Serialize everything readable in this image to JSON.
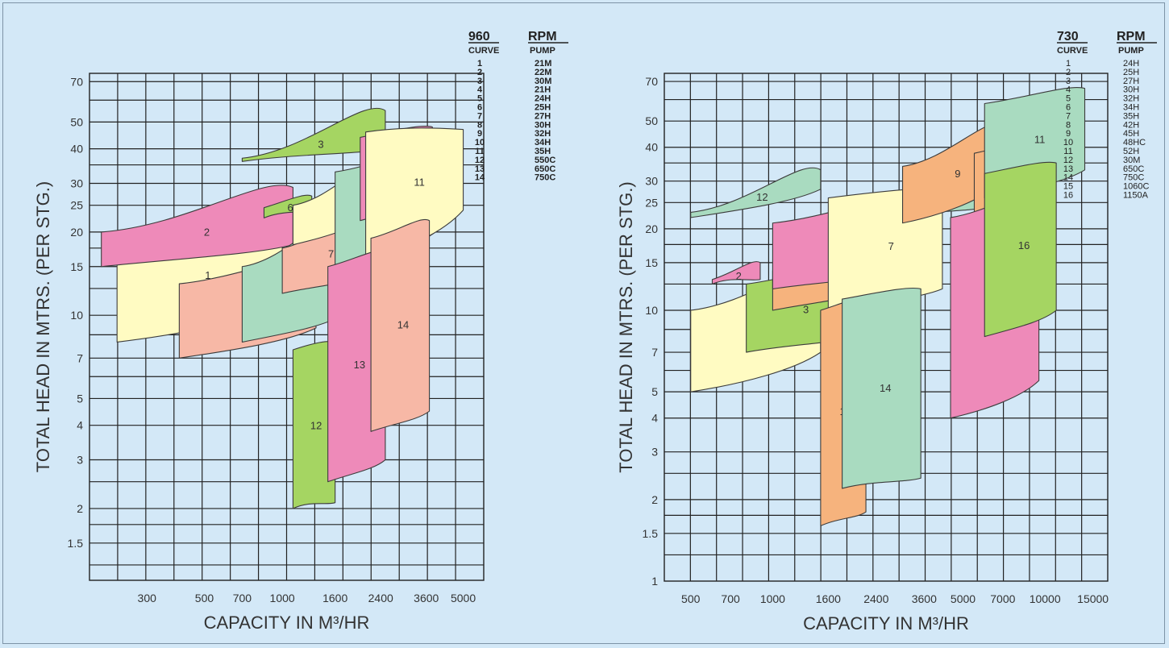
{
  "colors": {
    "background": "#d3e8f7",
    "grid": "#222222",
    "yellow": "#fffbc2",
    "pink": "#ee8ab9",
    "green": "#a5d562",
    "salmon": "#f7b8a6",
    "teal": "#a9dbc0",
    "orange": "#f6b37d"
  },
  "chart_data": [
    {
      "type": "area",
      "ylabel": "TOTAL HEAD IN MTRS. (PER STG.)",
      "xlabel": "CAPACITY IN M³/HR",
      "x_scale": "log",
      "y_scale": "log",
      "x_ticks": [
        "300",
        "500",
        "700",
        "1000",
        "1600",
        "2400",
        "3600",
        "5000"
      ],
      "y_ticks": [
        "70",
        "50",
        "40",
        "30",
        "25",
        "20",
        "15",
        "10",
        "7",
        "5",
        "4",
        "3",
        "2",
        "1.5"
      ],
      "legend": {
        "speed": "960",
        "speed_unit": "RPM",
        "col_curve": "CURVE",
        "col_pump": "PUMP",
        "rows": [
          [
            "1",
            "21M"
          ],
          [
            "2",
            "22M"
          ],
          [
            "3",
            "30M"
          ],
          [
            "4",
            "21H"
          ],
          [
            "5",
            "24H"
          ],
          [
            "6",
            "25H"
          ],
          [
            "7",
            "27H"
          ],
          [
            "8",
            "30H"
          ],
          [
            "9",
            "32H"
          ],
          [
            "10",
            "34H"
          ],
          [
            "11",
            "35H"
          ],
          [
            "12",
            "550C"
          ],
          [
            "13",
            "650C"
          ],
          [
            "14",
            "750C"
          ]
        ]
      },
      "curves": [
        {
          "curve": "1",
          "color": "yellow",
          "q": [
            230,
            1000
          ],
          "h": [
            17,
            25,
            11,
            8
          ]
        },
        {
          "curve": "2",
          "color": "pink",
          "q": [
            200,
            1100
          ],
          "h": [
            20,
            29,
            18,
            15
          ]
        },
        {
          "curve": "3",
          "color": "green",
          "q": [
            700,
            2500
          ],
          "h": [
            37,
            55,
            40,
            36
          ]
        },
        {
          "curve": "4",
          "color": "salmon",
          "q": [
            400,
            1350
          ],
          "h": [
            13,
            16,
            9,
            7
          ]
        },
        {
          "curve": "5",
          "color": "teal",
          "q": [
            700,
            1700
          ],
          "h": [
            15,
            22,
            10,
            8
          ]
        },
        {
          "curve": "6",
          "color": "green",
          "q": [
            850,
            1300
          ],
          "h": [
            24.5,
            27,
            24,
            22.5
          ]
        },
        {
          "curve": "7",
          "color": "salmon",
          "q": [
            1000,
            2200
          ],
          "h": [
            17.5,
            26,
            14,
            12
          ]
        },
        {
          "curve": "8",
          "color": "yellow",
          "q": [
            1100,
            2400
          ],
          "h": [
            25,
            35,
            24,
            18
          ]
        },
        {
          "curve": "9",
          "color": "teal",
          "q": [
            1600,
            3900
          ],
          "h": [
            33,
            40,
            20,
            15
          ]
        },
        {
          "curve": "10",
          "color": "pink",
          "q": [
            2000,
            3800
          ],
          "h": [
            44,
            48,
            26,
            22
          ]
        },
        {
          "curve": "11",
          "color": "yellow",
          "q": [
            2100,
            5000
          ],
          "h": [
            46,
            47,
            24,
            16
          ]
        },
        {
          "curve": "12",
          "color": "green",
          "q": [
            1100,
            1600
          ],
          "h": [
            7.5,
            8,
            2.1,
            2
          ]
        },
        {
          "curve": "13",
          "color": "pink",
          "q": [
            1500,
            2500
          ],
          "h": [
            15,
            17,
            3,
            2.5
          ]
        },
        {
          "curve": "14",
          "color": "salmon",
          "q": [
            2200,
            3700
          ],
          "h": [
            19,
            22,
            4.5,
            3.8
          ]
        }
      ]
    },
    {
      "type": "area",
      "ylabel": "TOTAL HEAD IN MTRS. (PER STG.)",
      "xlabel": "CAPACITY IN M³/HR",
      "x_scale": "log",
      "y_scale": "log",
      "x_ticks": [
        "500",
        "700",
        "1000",
        "1600",
        "2400",
        "3600",
        "5000",
        "7000",
        "10000",
        "15000"
      ],
      "y_ticks": [
        "70",
        "50",
        "40",
        "30",
        "25",
        "20",
        "15",
        "10",
        "7",
        "5",
        "4",
        "3",
        "2",
        "1.5",
        "1"
      ],
      "legend": {
        "speed": "730",
        "speed_unit": "RPM",
        "col_curve": "CURVE",
        "col_pump": "PUMP",
        "rows": [
          [
            "1",
            "24H"
          ],
          [
            "2",
            "25H"
          ],
          [
            "3",
            "27H"
          ],
          [
            "4",
            "30H"
          ],
          [
            "5",
            "32H"
          ],
          [
            "6",
            "34H"
          ],
          [
            "7",
            "35H"
          ],
          [
            "8",
            "42H"
          ],
          [
            "9",
            "45H"
          ],
          [
            "10",
            "48HC"
          ],
          [
            "11",
            "52H"
          ],
          [
            "12",
            "30M"
          ],
          [
            "13",
            "650C"
          ],
          [
            "14",
            "750C"
          ],
          [
            "15",
            "1060C"
          ],
          [
            "16",
            "1150A"
          ]
        ]
      },
      "curves": [
        {
          "curve": "1",
          "color": "yellow",
          "q": [
            500,
            1500
          ],
          "h": [
            10,
            14,
            7,
            5
          ]
        },
        {
          "curve": "2",
          "color": "pink",
          "q": [
            600,
            900
          ],
          "h": [
            13,
            15,
            13,
            12.5
          ]
        },
        {
          "curve": "3",
          "color": "green",
          "q": [
            800,
            2000
          ],
          "h": [
            12.5,
            14.5,
            8,
            7
          ]
        },
        {
          "curve": "4",
          "color": "orange",
          "q": [
            1000,
            2400
          ],
          "h": [
            14,
            19,
            12,
            10
          ]
        },
        {
          "curve": "5",
          "color": "green",
          "q": [
            2000,
            3200
          ],
          "h": [
            13,
            15,
            10,
            8
          ]
        },
        {
          "curve": "6",
          "color": "pink",
          "q": [
            1000,
            3200
          ],
          "h": [
            21,
            26,
            14,
            12
          ]
        },
        {
          "curve": "7",
          "color": "yellow",
          "q": [
            1600,
            4200
          ],
          "h": [
            26,
            28,
            12,
            10
          ]
        },
        {
          "curve": "8",
          "color": "teal",
          "q": [
            3000,
            6000
          ],
          "h": [
            33,
            37,
            24,
            22
          ]
        },
        {
          "curve": "9",
          "color": "orange",
          "q": [
            3000,
            7000
          ],
          "h": [
            34,
            48,
            30,
            21
          ]
        },
        {
          "curve": "10",
          "color": "orange",
          "q": [
            5500,
            9000
          ],
          "h": [
            38,
            40,
            24,
            20
          ]
        },
        {
          "curve": "11",
          "color": "teal",
          "q": [
            6000,
            14000
          ],
          "h": [
            58,
            66,
            33,
            26
          ]
        },
        {
          "curve": "12",
          "color": "teal",
          "q": [
            500,
            1500
          ],
          "h": [
            23,
            33,
            28,
            22
          ]
        },
        {
          "curve": "13",
          "color": "orange",
          "q": [
            1500,
            2200
          ],
          "h": [
            10,
            11,
            1.8,
            1.6
          ]
        },
        {
          "curve": "14",
          "color": "teal",
          "q": [
            1800,
            3500
          ],
          "h": [
            11,
            12,
            2.4,
            2.2
          ]
        },
        {
          "curve": "15",
          "color": "pink",
          "q": [
            4500,
            9500
          ],
          "h": [
            22,
            27,
            5.5,
            4
          ]
        },
        {
          "curve": "16",
          "color": "green",
          "q": [
            6000,
            11000
          ],
          "h": [
            32,
            35,
            10,
            8
          ]
        }
      ]
    }
  ]
}
